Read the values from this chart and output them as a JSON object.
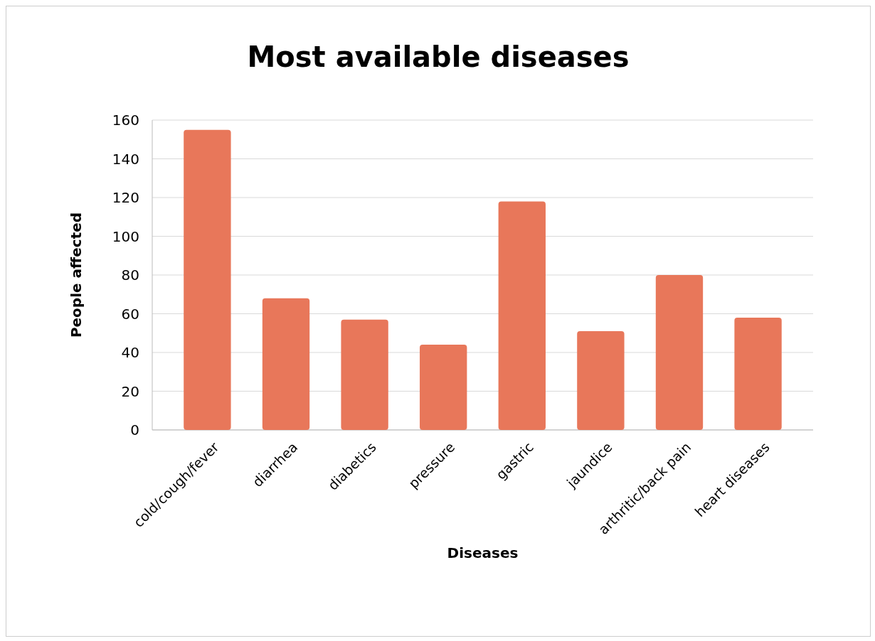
{
  "chart_data": {
    "type": "bar",
    "title": "Most available diseases",
    "xlabel": "Diseases",
    "ylabel": "People affected",
    "categories": [
      "cold/cough/fever",
      "diarrhea",
      "diabetics",
      "pressure",
      "gastric",
      "jaundice",
      "arthritic/back pain",
      "heart diseases"
    ],
    "values": [
      155,
      68,
      57,
      44,
      118,
      51,
      80,
      58
    ],
    "color": "#e8775a",
    "ylim": [
      0,
      160
    ],
    "yticks": [
      0,
      20,
      40,
      60,
      80,
      100,
      120,
      140,
      160
    ],
    "grid": "y"
  }
}
